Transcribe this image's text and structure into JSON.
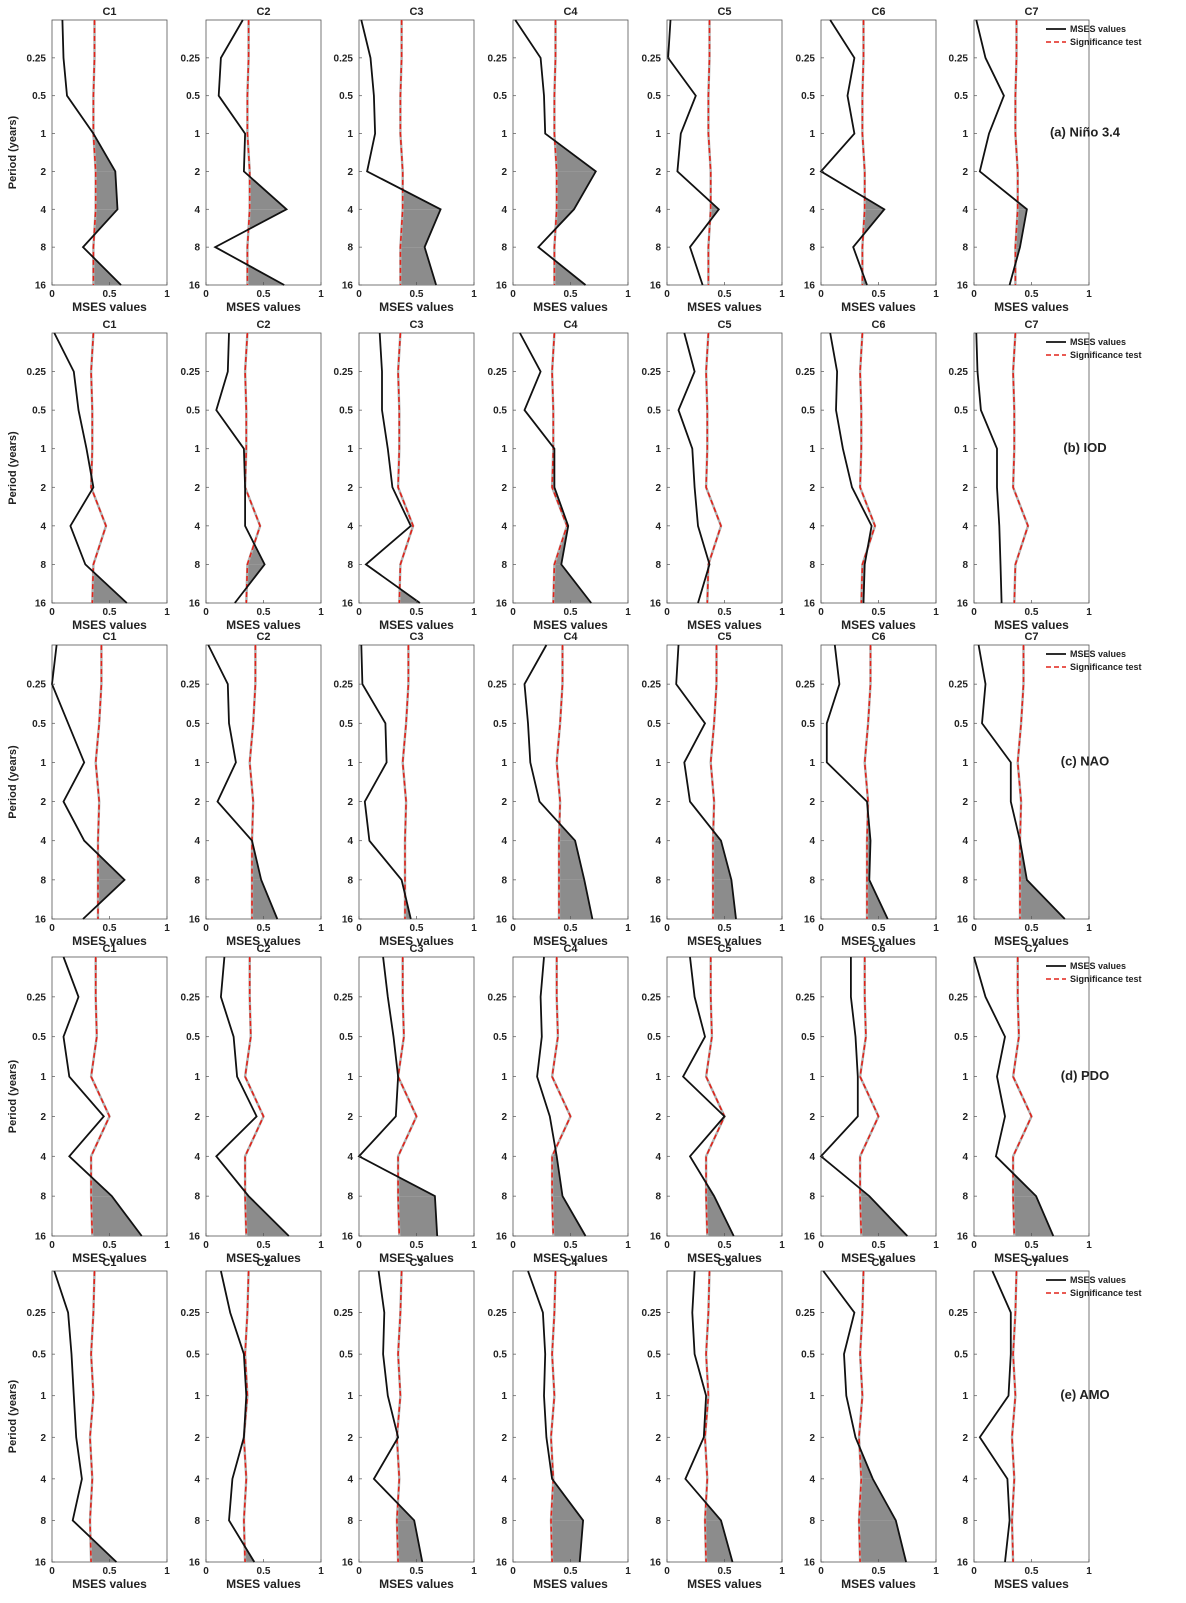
{
  "legend": {
    "mses_label": "MSES values",
    "sig_label": "Significance test"
  },
  "y_axis_label": "Period (years)",
  "chart_data": [
    {
      "type": "line",
      "row_label": "(a)  Niño 3.4",
      "xlabel": "MSES values",
      "ylabel": "Period (years)",
      "xlim": [
        0,
        1
      ],
      "x_ticks": [
        "0",
        "0.5",
        "1"
      ],
      "y_ticks": [
        "0.25",
        "0.5",
        "1",
        "2",
        "4",
        "8",
        "16"
      ],
      "y_direction": "period increases downward",
      "fill": "grey area where MSES exceeds significance",
      "panels": [
        {
          "title": "C1",
          "mses": [
            0.09,
            0.1,
            0.13,
            0.36,
            0.55,
            0.57,
            0.27,
            0.6
          ],
          "sig": [
            0.37,
            0.37,
            0.36,
            0.36,
            0.38,
            0.38,
            0.36,
            0.36
          ]
        },
        {
          "title": "C2",
          "mses": [
            0.32,
            0.13,
            0.11,
            0.34,
            0.33,
            0.7,
            0.08,
            0.68
          ],
          "sig": [
            0.37,
            0.37,
            0.36,
            0.36,
            0.38,
            0.38,
            0.36,
            0.36
          ]
        },
        {
          "title": "C3",
          "mses": [
            0.02,
            0.1,
            0.13,
            0.14,
            0.07,
            0.71,
            0.57,
            0.67
          ],
          "sig": [
            0.37,
            0.37,
            0.36,
            0.36,
            0.38,
            0.38,
            0.36,
            0.36
          ]
        },
        {
          "title": "C4",
          "mses": [
            0.02,
            0.24,
            0.27,
            0.28,
            0.72,
            0.53,
            0.22,
            0.63
          ],
          "sig": [
            0.37,
            0.37,
            0.36,
            0.36,
            0.38,
            0.38,
            0.36,
            0.36
          ]
        },
        {
          "title": "C5",
          "mses": [
            0.03,
            0.01,
            0.25,
            0.12,
            0.09,
            0.45,
            0.2,
            0.31
          ],
          "sig": [
            0.37,
            0.37,
            0.36,
            0.36,
            0.38,
            0.38,
            0.36,
            0.36
          ]
        },
        {
          "title": "C6",
          "mses": [
            0.08,
            0.29,
            0.23,
            0.29,
            0.0,
            0.55,
            0.28,
            0.4
          ],
          "sig": [
            0.37,
            0.37,
            0.36,
            0.36,
            0.38,
            0.38,
            0.36,
            0.36
          ]
        },
        {
          "title": "C7",
          "mses": [
            0.02,
            0.1,
            0.26,
            0.13,
            0.05,
            0.46,
            0.4,
            0.31
          ],
          "sig": [
            0.37,
            0.37,
            0.36,
            0.36,
            0.38,
            0.38,
            0.36,
            0.36
          ]
        }
      ]
    },
    {
      "type": "line",
      "row_label": "(b) IOD",
      "xlabel": "MSES values",
      "ylabel": "Period (years)",
      "xlim": [
        0,
        1
      ],
      "x_ticks": [
        "0",
        "0.5",
        "1"
      ],
      "y_ticks": [
        "0.25",
        "0.5",
        "1",
        "2",
        "4",
        "8",
        "16"
      ],
      "y_direction": "period increases downward",
      "fill": "grey area where MSES exceeds significance",
      "panels": [
        {
          "title": "C1",
          "mses": [
            0.02,
            0.19,
            0.23,
            0.3,
            0.36,
            0.16,
            0.29,
            0.65
          ],
          "sig": [
            0.36,
            0.34,
            0.35,
            0.35,
            0.34,
            0.47,
            0.36,
            0.35
          ]
        },
        {
          "title": "C2",
          "mses": [
            0.2,
            0.19,
            0.09,
            0.33,
            0.34,
            0.34,
            0.51,
            0.25
          ],
          "sig": [
            0.36,
            0.34,
            0.35,
            0.35,
            0.34,
            0.47,
            0.36,
            0.35
          ]
        },
        {
          "title": "C3",
          "mses": [
            0.18,
            0.2,
            0.2,
            0.25,
            0.29,
            0.45,
            0.06,
            0.53
          ],
          "sig": [
            0.36,
            0.34,
            0.35,
            0.35,
            0.34,
            0.47,
            0.36,
            0.35
          ]
        },
        {
          "title": "C4",
          "mses": [
            0.06,
            0.24,
            0.1,
            0.36,
            0.36,
            0.48,
            0.42,
            0.68
          ],
          "sig": [
            0.36,
            0.34,
            0.35,
            0.35,
            0.34,
            0.47,
            0.36,
            0.35
          ]
        },
        {
          "title": "C5",
          "mses": [
            0.15,
            0.24,
            0.1,
            0.22,
            0.24,
            0.27,
            0.37,
            0.27
          ],
          "sig": [
            0.36,
            0.34,
            0.35,
            0.35,
            0.34,
            0.47,
            0.36,
            0.35
          ]
        },
        {
          "title": "C6",
          "mses": [
            0.08,
            0.14,
            0.13,
            0.19,
            0.27,
            0.44,
            0.38,
            0.37
          ],
          "sig": [
            0.36,
            0.34,
            0.35,
            0.35,
            0.34,
            0.47,
            0.36,
            0.35
          ]
        },
        {
          "title": "C7",
          "mses": [
            0.02,
            0.03,
            0.06,
            0.2,
            0.2,
            0.22,
            0.23,
            0.24
          ],
          "sig": [
            0.36,
            0.34,
            0.35,
            0.35,
            0.34,
            0.47,
            0.36,
            0.35
          ]
        }
      ]
    },
    {
      "type": "line",
      "row_label": "(c) NAO",
      "xlabel": "MSES values",
      "ylabel": "Period (years)",
      "xlim": [
        0,
        1
      ],
      "x_ticks": [
        "0",
        "0.5",
        "1"
      ],
      "y_ticks": [
        "0.25",
        "0.5",
        "1",
        "2",
        "4",
        "8",
        "16"
      ],
      "y_direction": "period increases downward",
      "fill": "grey area where MSES exceeds significance",
      "panels": [
        {
          "title": "C1",
          "mses": [
            0.04,
            0.0,
            0.14,
            0.28,
            0.1,
            0.28,
            0.63,
            0.27
          ],
          "sig": [
            0.43,
            0.43,
            0.41,
            0.38,
            0.41,
            0.4,
            0.4,
            0.4
          ]
        },
        {
          "title": "C2",
          "mses": [
            0.02,
            0.19,
            0.2,
            0.26,
            0.1,
            0.4,
            0.48,
            0.62
          ],
          "sig": [
            0.43,
            0.43,
            0.41,
            0.38,
            0.41,
            0.4,
            0.4,
            0.4
          ]
        },
        {
          "title": "C3",
          "mses": [
            0.02,
            0.03,
            0.23,
            0.24,
            0.05,
            0.09,
            0.37,
            0.45
          ],
          "sig": [
            0.43,
            0.43,
            0.41,
            0.38,
            0.41,
            0.4,
            0.4,
            0.4
          ]
        },
        {
          "title": "C4",
          "mses": [
            0.29,
            0.1,
            0.13,
            0.15,
            0.23,
            0.54,
            0.62,
            0.69
          ],
          "sig": [
            0.43,
            0.43,
            0.41,
            0.38,
            0.41,
            0.4,
            0.4,
            0.4
          ]
        },
        {
          "title": "C5",
          "mses": [
            0.1,
            0.08,
            0.33,
            0.15,
            0.2,
            0.47,
            0.56,
            0.6
          ],
          "sig": [
            0.43,
            0.43,
            0.41,
            0.38,
            0.41,
            0.4,
            0.4,
            0.4
          ]
        },
        {
          "title": "C6",
          "mses": [
            0.12,
            0.16,
            0.05,
            0.05,
            0.4,
            0.43,
            0.42,
            0.58
          ],
          "sig": [
            0.43,
            0.43,
            0.41,
            0.38,
            0.41,
            0.4,
            0.4,
            0.4
          ]
        },
        {
          "title": "C7",
          "mses": [
            0.04,
            0.1,
            0.07,
            0.32,
            0.32,
            0.4,
            0.46,
            0.79
          ],
          "sig": [
            0.43,
            0.43,
            0.41,
            0.38,
            0.41,
            0.4,
            0.4,
            0.4
          ]
        }
      ]
    },
    {
      "type": "line",
      "row_label": "(d)  PDO",
      "xlabel": "MSES values",
      "ylabel": "Period (years)",
      "xlim": [
        0,
        1
      ],
      "x_ticks": [
        "0",
        "0.5",
        "1"
      ],
      "y_ticks": [
        "0.25",
        "0.5",
        "1",
        "2",
        "4",
        "8",
        "16"
      ],
      "y_direction": "period increases downward",
      "fill": "grey area where MSES exceeds significance",
      "panels": [
        {
          "title": "C1",
          "mses": [
            0.1,
            0.23,
            0.1,
            0.15,
            0.45,
            0.15,
            0.52,
            0.78
          ],
          "sig": [
            0.38,
            0.38,
            0.39,
            0.34,
            0.5,
            0.34,
            0.34,
            0.35
          ]
        },
        {
          "title": "C2",
          "mses": [
            0.16,
            0.13,
            0.24,
            0.27,
            0.44,
            0.09,
            0.37,
            0.72
          ],
          "sig": [
            0.38,
            0.38,
            0.39,
            0.34,
            0.5,
            0.34,
            0.34,
            0.35
          ]
        },
        {
          "title": "C3",
          "mses": [
            0.21,
            0.25,
            0.3,
            0.34,
            0.32,
            0.0,
            0.66,
            0.68
          ],
          "sig": [
            0.38,
            0.38,
            0.39,
            0.34,
            0.5,
            0.34,
            0.34,
            0.35
          ]
        },
        {
          "title": "C4",
          "mses": [
            0.27,
            0.24,
            0.25,
            0.21,
            0.32,
            0.38,
            0.43,
            0.63
          ],
          "sig": [
            0.38,
            0.38,
            0.39,
            0.34,
            0.5,
            0.34,
            0.34,
            0.35
          ]
        },
        {
          "title": "C5",
          "mses": [
            0.2,
            0.24,
            0.33,
            0.14,
            0.5,
            0.2,
            0.41,
            0.58
          ],
          "sig": [
            0.38,
            0.38,
            0.39,
            0.34,
            0.5,
            0.34,
            0.34,
            0.35
          ]
        },
        {
          "title": "C6",
          "mses": [
            0.26,
            0.26,
            0.3,
            0.32,
            0.32,
            0.0,
            0.42,
            0.75
          ],
          "sig": [
            0.38,
            0.38,
            0.39,
            0.34,
            0.5,
            0.34,
            0.34,
            0.35
          ]
        },
        {
          "title": "C7",
          "mses": [
            0.0,
            0.1,
            0.27,
            0.2,
            0.27,
            0.19,
            0.54,
            0.69
          ],
          "sig": [
            0.38,
            0.38,
            0.39,
            0.34,
            0.5,
            0.34,
            0.34,
            0.35
          ]
        }
      ]
    },
    {
      "type": "line",
      "row_label": "(e) AMO",
      "xlabel": "MSES values",
      "ylabel": "Period (years)",
      "xlim": [
        0,
        1
      ],
      "x_ticks": [
        "0",
        "0.5",
        "1"
      ],
      "y_ticks": [
        "0.25",
        "0.5",
        "1",
        "2",
        "4",
        "8",
        "16"
      ],
      "y_direction": "period increases downward",
      "fill": "grey area where MSES exceeds significance",
      "panels": [
        {
          "title": "C1",
          "mses": [
            0.02,
            0.14,
            0.17,
            0.19,
            0.21,
            0.26,
            0.18,
            0.56
          ],
          "sig": [
            0.37,
            0.36,
            0.34,
            0.36,
            0.33,
            0.35,
            0.33,
            0.34
          ]
        },
        {
          "title": "C2",
          "mses": [
            0.13,
            0.21,
            0.33,
            0.35,
            0.33,
            0.23,
            0.2,
            0.42
          ],
          "sig": [
            0.37,
            0.36,
            0.34,
            0.36,
            0.33,
            0.35,
            0.33,
            0.34
          ]
        },
        {
          "title": "C3",
          "mses": [
            0.17,
            0.22,
            0.21,
            0.25,
            0.34,
            0.13,
            0.48,
            0.55
          ],
          "sig": [
            0.37,
            0.36,
            0.34,
            0.36,
            0.33,
            0.35,
            0.33,
            0.34
          ]
        },
        {
          "title": "C4",
          "mses": [
            0.13,
            0.26,
            0.28,
            0.27,
            0.29,
            0.34,
            0.61,
            0.58
          ],
          "sig": [
            0.37,
            0.36,
            0.34,
            0.36,
            0.33,
            0.35,
            0.33,
            0.34
          ]
        },
        {
          "title": "C5",
          "mses": [
            0.24,
            0.22,
            0.24,
            0.34,
            0.32,
            0.16,
            0.47,
            0.57
          ],
          "sig": [
            0.37,
            0.36,
            0.34,
            0.36,
            0.33,
            0.35,
            0.33,
            0.34
          ]
        },
        {
          "title": "C6",
          "mses": [
            0.02,
            0.29,
            0.2,
            0.22,
            0.3,
            0.45,
            0.65,
            0.74
          ],
          "sig": [
            0.37,
            0.36,
            0.34,
            0.36,
            0.33,
            0.35,
            0.33,
            0.34
          ]
        },
        {
          "title": "C7",
          "mses": [
            0.16,
            0.32,
            0.32,
            0.3,
            0.05,
            0.29,
            0.31,
            0.27
          ],
          "sig": [
            0.37,
            0.36,
            0.34,
            0.36,
            0.33,
            0.35,
            0.33,
            0.34
          ]
        }
      ]
    }
  ]
}
